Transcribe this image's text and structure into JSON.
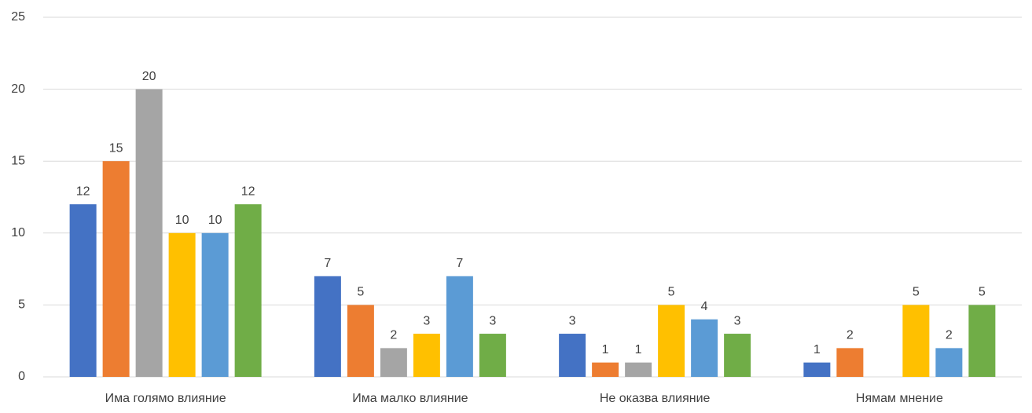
{
  "chart_data": {
    "type": "bar",
    "categories": [
      "Има голямо влияние",
      "Има малко влияние",
      "Не оказва влияние",
      "Нямам мнение"
    ],
    "series": [
      {
        "color": "#4472c4",
        "values": [
          12,
          7,
          3,
          1
        ]
      },
      {
        "color": "#ed7d31",
        "values": [
          15,
          5,
          1,
          2
        ]
      },
      {
        "color": "#a5a5a5",
        "values": [
          20,
          2,
          1,
          null
        ]
      },
      {
        "color": "#ffc000",
        "values": [
          10,
          3,
          5,
          5
        ]
      },
      {
        "color": "#5b9bd5",
        "values": [
          10,
          7,
          4,
          2
        ]
      },
      {
        "color": "#70ad47",
        "values": [
          12,
          3,
          3,
          5
        ]
      }
    ],
    "ylim": [
      0,
      25
    ],
    "yticks": [
      0,
      5,
      10,
      15,
      20,
      25
    ],
    "grid": true
  }
}
